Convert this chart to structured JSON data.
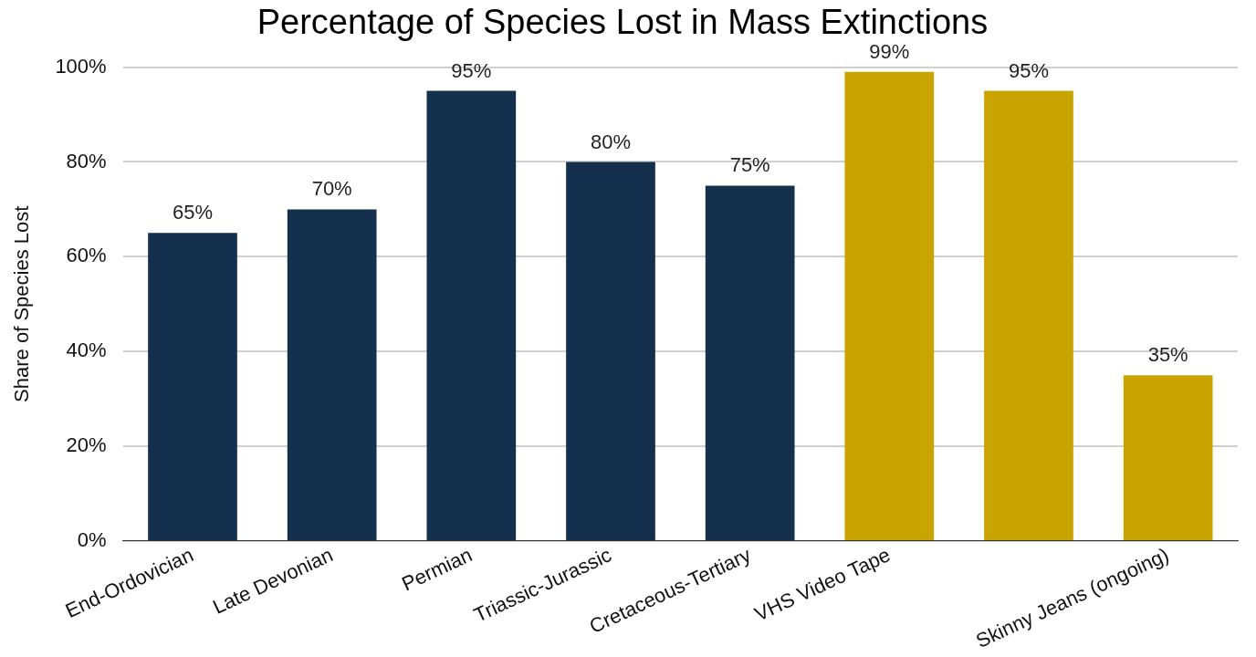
{
  "chart_data": {
    "type": "bar",
    "title": "Percentage of Species Lost in Mass Extinctions",
    "ylabel": "Share of Species Lost",
    "categories": [
      "End-Ordovician",
      "Late Devonian",
      "Permian",
      "Triassic-Jurassic",
      "Cretaceous-Tertiary",
      "VHS Video Tape",
      null,
      "Skinny Jeans (ongoing)"
    ],
    "values": [
      65,
      70,
      95,
      80,
      75,
      99,
      95,
      35
    ],
    "value_labels": [
      "65%",
      "70%",
      "95%",
      "80%",
      "75%",
      "99%",
      "95%",
      "35%"
    ],
    "colors": [
      "#14304d",
      "#14304d",
      "#14304d",
      "#14304d",
      "#14304d",
      "#c9a400",
      "#c9a400",
      "#c9a400"
    ],
    "ylim": [
      0,
      100
    ],
    "yticks": [
      {
        "value": 0,
        "label": "0%"
      },
      {
        "value": 20,
        "label": "20%"
      },
      {
        "value": 40,
        "label": "40%"
      },
      {
        "value": 60,
        "label": "60%"
      },
      {
        "value": 80,
        "label": "80%"
      },
      {
        "value": 100,
        "label": "100%"
      }
    ],
    "grid": "y",
    "legend": false
  }
}
